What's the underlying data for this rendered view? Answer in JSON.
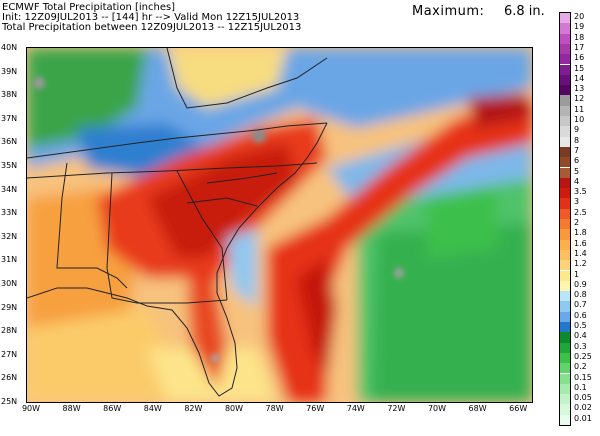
{
  "header": {
    "line1": "ECMWF Total Precipitation [inches]",
    "line2": "Init: 12Z09JUL2013 -- [144] hr --> Valid Mon 12Z15JUL2013",
    "line3": "Total Precipitation between 12Z09JUL2013 -- 12Z15JUL2013",
    "max_label": "Maximum:",
    "max_value": "6.8 in."
  },
  "map": {
    "lat_labels": [
      "40N",
      "39N",
      "38N",
      "37N",
      "36N",
      "35N",
      "34N",
      "33N",
      "32N",
      "31N",
      "30N",
      "29N",
      "28N",
      "27N",
      "26N",
      "25N"
    ],
    "lon_labels": [
      "90W",
      "88W",
      "86W",
      "84W",
      "82W",
      "80W",
      "78W",
      "76W",
      "74W",
      "72W",
      "70W",
      "68W",
      "66W"
    ]
  },
  "legend": {
    "levels": [
      "20",
      "19",
      "18",
      "17",
      "16",
      "15",
      "14",
      "13",
      "12",
      "11",
      "10",
      "9",
      "8",
      "7",
      "6",
      "5",
      "4",
      "3.5",
      "3",
      "2.5",
      "2",
      "1.8",
      "1.6",
      "1.4",
      "1.2",
      "1",
      "0.9",
      "0.8",
      "0.7",
      "0.6",
      "0.5",
      "0.4",
      "0.3",
      "0.25",
      "0.2",
      "0.15",
      "0.1",
      "0.05",
      "0.02",
      "0.01"
    ],
    "colors": [
      "#e6aae6",
      "#d27ad2",
      "#c050c0",
      "#a93aa9",
      "#9428a0",
      "#7d1d90",
      "#671078",
      "#520860",
      "#9c9c9c",
      "#b4b4b4",
      "#c8c8c8",
      "#dadada",
      "#e8e8e8",
      "#7b3a22",
      "#8e4a2a",
      "#a85a34",
      "#b51515",
      "#cc1c10",
      "#e0321a",
      "#ef5a28",
      "#f47a30",
      "#f89a3c",
      "#fbb04a",
      "#fdc060",
      "#fdd378",
      "#fde98c",
      "#fff4b0",
      "#b8e6f8",
      "#90c8f0",
      "#6aa8e8",
      "#2277c8",
      "#0e8a2c",
      "#21a63a",
      "#3ec04c",
      "#60d36c",
      "#86e08e",
      "#a6ebac",
      "#c2f2c8",
      "#d8f8dc",
      "#eafcee"
    ]
  }
}
